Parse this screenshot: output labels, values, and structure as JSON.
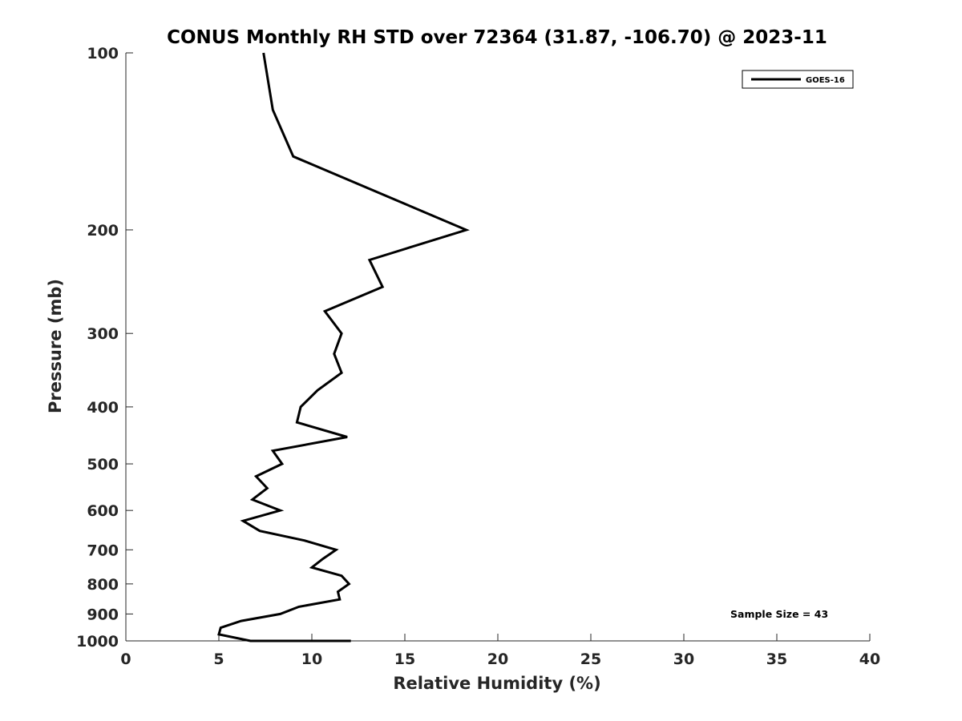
{
  "chart_data": {
    "type": "line",
    "title": "CONUS Monthly RH STD over 72364 (31.87, -106.70) @ 2023-11",
    "xlabel": "Relative Humidity (%)",
    "ylabel": "Pressure (mb)",
    "xlim": [
      0,
      40
    ],
    "ylim": [
      1000,
      100
    ],
    "y_scale": "log",
    "y_inverted": true,
    "x_ticks": [
      0,
      5,
      10,
      15,
      20,
      25,
      30,
      35,
      40
    ],
    "x_tick_labels": [
      "0",
      "5",
      "10",
      "15",
      "20",
      "25",
      "30",
      "35",
      "40"
    ],
    "y_ticks": [
      100,
      200,
      300,
      400,
      500,
      600,
      700,
      800,
      900,
      1000
    ],
    "y_tick_labels": [
      "100",
      "200",
      "300",
      "400",
      "500",
      "600",
      "700",
      "800",
      "900",
      "1000"
    ],
    "grid": false,
    "legend_position": "top-right",
    "annotation": "Sample Size = 43",
    "series": [
      {
        "name": "GOES-16",
        "color": "#000000",
        "points": [
          {
            "x": 7.4,
            "y": 100
          },
          {
            "x": 7.9,
            "y": 125
          },
          {
            "x": 9.0,
            "y": 150
          },
          {
            "x": 18.3,
            "y": 200
          },
          {
            "x": 13.1,
            "y": 225
          },
          {
            "x": 13.8,
            "y": 250
          },
          {
            "x": 10.7,
            "y": 275
          },
          {
            "x": 11.6,
            "y": 300
          },
          {
            "x": 11.2,
            "y": 325
          },
          {
            "x": 11.6,
            "y": 350
          },
          {
            "x": 10.3,
            "y": 375
          },
          {
            "x": 9.4,
            "y": 400
          },
          {
            "x": 9.2,
            "y": 425
          },
          {
            "x": 11.9,
            "y": 450
          },
          {
            "x": 7.9,
            "y": 475
          },
          {
            "x": 8.4,
            "y": 500
          },
          {
            "x": 7.0,
            "y": 525
          },
          {
            "x": 7.6,
            "y": 550
          },
          {
            "x": 6.8,
            "y": 575
          },
          {
            "x": 8.3,
            "y": 600
          },
          {
            "x": 6.3,
            "y": 625
          },
          {
            "x": 7.2,
            "y": 650
          },
          {
            "x": 9.6,
            "y": 675
          },
          {
            "x": 11.3,
            "y": 700
          },
          {
            "x": 10.6,
            "y": 725
          },
          {
            "x": 10.0,
            "y": 750
          },
          {
            "x": 11.6,
            "y": 775
          },
          {
            "x": 12.0,
            "y": 800
          },
          {
            "x": 11.4,
            "y": 825
          },
          {
            "x": 11.5,
            "y": 850
          },
          {
            "x": 9.3,
            "y": 875
          },
          {
            "x": 8.3,
            "y": 900
          },
          {
            "x": 6.2,
            "y": 925
          },
          {
            "x": 5.1,
            "y": 950
          },
          {
            "x": 5.0,
            "y": 975
          },
          {
            "x": 6.7,
            "y": 1000
          },
          {
            "x": 12.1,
            "y": 1025
          }
        ]
      }
    ]
  }
}
